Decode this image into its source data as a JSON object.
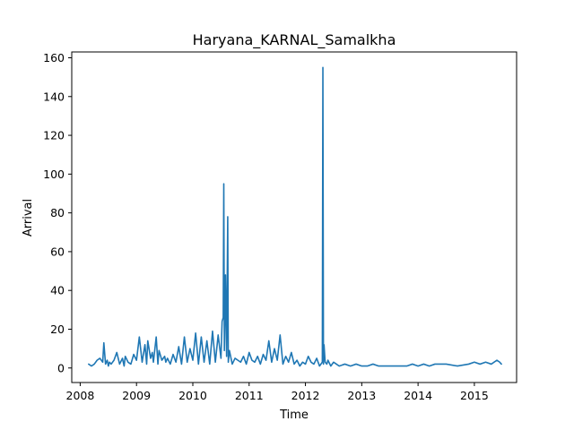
{
  "chart_data": {
    "type": "line",
    "title": "Haryana_KARNAL_Samalkha",
    "xlabel": "Time",
    "ylabel": "Arrival",
    "xlim": [
      2007.85,
      2015.75
    ],
    "ylim": [
      -7.5,
      163
    ],
    "x_ticks": [
      2008,
      2009,
      2010,
      2011,
      2012,
      2013,
      2014,
      2015
    ],
    "x_tick_labels": [
      "2008",
      "2009",
      "2010",
      "2011",
      "2012",
      "2013",
      "2014",
      "2015"
    ],
    "y_ticks": [
      0,
      20,
      40,
      60,
      80,
      100,
      120,
      140,
      160
    ],
    "y_tick_labels": [
      "0",
      "20",
      "40",
      "60",
      "80",
      "100",
      "120",
      "140",
      "160"
    ],
    "grid": false,
    "series": [
      {
        "color": "#1f77b4",
        "x": [
          2008.15,
          2008.2,
          2008.25,
          2008.3,
          2008.35,
          2008.4,
          2008.42,
          2008.45,
          2008.48,
          2008.5,
          2008.52,
          2008.55,
          2008.6,
          2008.65,
          2008.7,
          2008.75,
          2008.78,
          2008.8,
          2008.85,
          2008.9,
          2008.95,
          2009.0,
          2009.05,
          2009.1,
          2009.15,
          2009.18,
          2009.2,
          2009.25,
          2009.28,
          2009.3,
          2009.35,
          2009.38,
          2009.4,
          2009.45,
          2009.5,
          2009.52,
          2009.55,
          2009.6,
          2009.65,
          2009.7,
          2009.75,
          2009.8,
          2009.85,
          2009.9,
          2009.95,
          2010.0,
          2010.05,
          2010.1,
          2010.15,
          2010.2,
          2010.25,
          2010.3,
          2010.35,
          2010.4,
          2010.45,
          2010.5,
          2010.52,
          2010.54,
          2010.55,
          2010.56,
          2010.58,
          2010.6,
          2010.62,
          2010.63,
          2010.65,
          2010.7,
          2010.75,
          2010.8,
          2010.85,
          2010.9,
          2010.95,
          2011.0,
          2011.05,
          2011.1,
          2011.15,
          2011.2,
          2011.25,
          2011.3,
          2011.35,
          2011.4,
          2011.45,
          2011.5,
          2011.55,
          2011.6,
          2011.65,
          2011.7,
          2011.75,
          2011.8,
          2011.85,
          2011.9,
          2011.95,
          2012.0,
          2012.05,
          2012.1,
          2012.15,
          2012.2,
          2012.25,
          2012.3,
          2012.31,
          2012.32,
          2012.33,
          2012.35,
          2012.38,
          2012.4,
          2012.45,
          2012.5,
          2012.55,
          2012.6,
          2012.7,
          2012.8,
          2012.9,
          2013.0,
          2013.1,
          2013.2,
          2013.3,
          2013.4,
          2013.6,
          2013.8,
          2013.9,
          2014.0,
          2014.1,
          2014.2,
          2014.3,
          2014.5,
          2014.7,
          2014.9,
          2015.0,
          2015.1,
          2015.2,
          2015.3,
          2015.4,
          2015.45,
          2015.48
        ],
        "y": [
          2,
          1,
          2,
          4,
          5,
          3,
          13,
          2,
          4,
          1,
          3,
          2,
          4,
          8,
          2,
          5,
          1,
          6,
          3,
          2,
          7,
          4,
          16,
          3,
          12,
          2,
          14,
          5,
          8,
          3,
          16,
          2,
          9,
          4,
          6,
          3,
          5,
          2,
          7,
          3,
          11,
          2,
          16,
          3,
          10,
          4,
          18,
          2,
          16,
          3,
          14,
          2,
          19,
          3,
          17,
          5,
          24,
          26,
          95,
          9,
          48,
          6,
          78,
          3,
          9,
          2,
          5,
          4,
          3,
          6,
          2,
          8,
          4,
          3,
          6,
          2,
          7,
          4,
          14,
          3,
          10,
          4,
          17,
          2,
          6,
          3,
          8,
          2,
          4,
          1,
          3,
          2,
          6,
          3,
          2,
          5,
          1,
          3,
          155,
          2,
          12,
          3,
          2,
          4,
          1,
          3,
          2,
          1,
          2,
          1,
          2,
          1,
          1,
          2,
          1,
          1,
          1,
          1,
          2,
          1,
          2,
          1,
          2,
          2,
          1,
          2,
          3,
          2,
          3,
          2,
          4,
          3,
          2
        ]
      }
    ]
  }
}
